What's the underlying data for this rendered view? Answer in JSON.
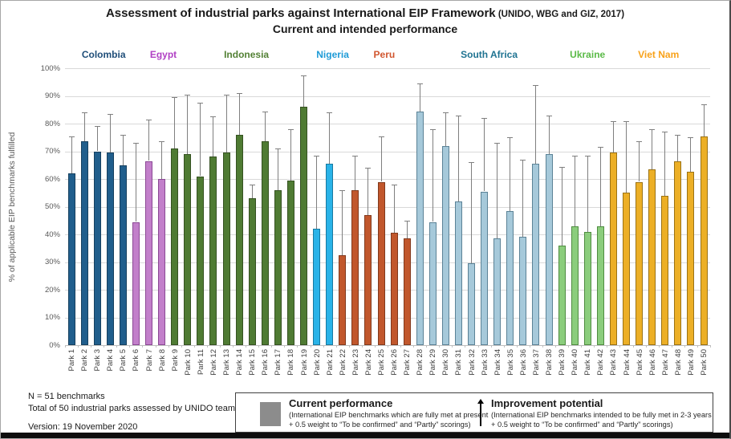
{
  "header": {
    "title_main": "Assessment of industrial parks against International EIP Framework",
    "title_source": " (UNIDO, WBG and GIZ, 2017)",
    "subtitle": "Current and intended performance"
  },
  "chart_data": {
    "type": "bar",
    "title": "Assessment of industrial parks against International EIP Framework (UNIDO, WBG and GIZ, 2017) — Current and intended performance",
    "ylabel": "% of applicable EIP benchmarks fulfilled",
    "xlabel": "",
    "ylim": [
      0,
      100
    ],
    "ytick_step": 10,
    "ytick_format": "percent",
    "grid": true,
    "legend_position": "bottom",
    "error_bar_color": "#7f7f7f",
    "categories": [
      "Park 1",
      "Park 2",
      "Park 3",
      "Park 4",
      "Park 5",
      "Park 6",
      "Park 7",
      "Park 8",
      "Park 9",
      "Park 10",
      "Park 11",
      "Park 12",
      "Park 13",
      "Park 14",
      "Park 15",
      "Park 16",
      "Park 17",
      "Park 18",
      "Park 19",
      "Park 20",
      "Park 21",
      "Park 22",
      "Park 23",
      "Park 24",
      "Park 25",
      "Park 26",
      "Park 27",
      "Park 28",
      "Park 29",
      "Park 30",
      "Park 31",
      "Park 32",
      "Park 33",
      "Park 34",
      "Park 35",
      "Park 36",
      "Park 37",
      "Park 38",
      "Park 39",
      "Park 40",
      "Park 41",
      "Park 42",
      "Park 43",
      "Park 44",
      "Park 45",
      "Park 46",
      "Park 47",
      "Park 48",
      "Park 49",
      "Park 50"
    ],
    "groups": [
      {
        "name": "Colombia",
        "start": 1,
        "end": 5,
        "fill": "#205e8c",
        "border": "#16405f",
        "label_color": "#1f4e79"
      },
      {
        "name": "Egypt",
        "start": 6,
        "end": 8,
        "fill": "#c27fca",
        "border": "#8b4894",
        "label_color": "#b03fc4"
      },
      {
        "name": "Indonesia",
        "start": 9,
        "end": 19,
        "fill": "#4f7b33",
        "border": "#355221",
        "label_color": "#538135"
      },
      {
        "name": "Nigeria",
        "start": 20,
        "end": 21,
        "fill": "#29b3e8",
        "border": "#1879a0",
        "label_color": "#1e9bd7"
      },
      {
        "name": "Peru",
        "start": 22,
        "end": 27,
        "fill": "#c1572c",
        "border": "#81391c",
        "label_color": "#d1562f"
      },
      {
        "name": "South Africa",
        "start": 28,
        "end": 38,
        "fill": "#a6c9da",
        "border": "#5b8296",
        "label_color": "#1f7391"
      },
      {
        "name": "Ukraine",
        "start": 39,
        "end": 42,
        "fill": "#8bcd7c",
        "border": "#4f8c40",
        "label_color": "#5aba47"
      },
      {
        "name": "Viet Nam",
        "start": 43,
        "end": 50,
        "fill": "#ecaf26",
        "border": "#9b7214",
        "label_color": "#f8a21a"
      }
    ],
    "series": [
      {
        "name": "Current performance",
        "values": [
          62,
          73.5,
          70,
          69.5,
          65,
          44.5,
          66.5,
          60,
          71,
          69,
          61,
          68,
          69.5,
          76,
          53,
          73.5,
          56,
          59.5,
          86,
          42,
          65.5,
          32.5,
          56,
          47,
          59,
          40.5,
          38.5,
          84.5,
          44.5,
          72,
          52,
          29.5,
          55.5,
          38.5,
          48.5,
          39,
          65.5,
          69,
          36,
          43,
          41,
          43,
          69.5,
          55,
          59,
          63.5,
          54,
          66.5,
          62.5,
          75.5
        ]
      },
      {
        "name": "Improvement potential (top of whisker)",
        "values": [
          75.5,
          84,
          79,
          83.5,
          76,
          73,
          81.5,
          73.5,
          89.5,
          90.5,
          87.5,
          82.5,
          90.5,
          91,
          58,
          84.5,
          71,
          78,
          97.5,
          68.5,
          84,
          56,
          68.5,
          64,
          75.5,
          58,
          45,
          94.5,
          78,
          84,
          83,
          66,
          82,
          73,
          75,
          67,
          94,
          83,
          64.5,
          68.5,
          68.5,
          71.5,
          81,
          81,
          73.5,
          78,
          77,
          76,
          75,
          87
        ]
      }
    ]
  },
  "footnotes": {
    "line1": "N = 51 benchmarks",
    "line2": "Total of 50 industrial parks assessed by UNIDO team",
    "version": "Version: 19 November 2020"
  },
  "legend": {
    "current": {
      "title": "Current performance",
      "desc1": "(International EIP benchmarks which are fully met at present",
      "desc2": "+ 0.5 weight to “To be confirmed” and “Partly” scorings)",
      "swatch_color": "#8c8c8c"
    },
    "improvement": {
      "title": "Improvement potential",
      "desc1": "(International EIP benchmarks intended to be fully met in 2-3 years",
      "desc2": "+ 0.5 weight to “To be confirmed” and “Partly” scorings)"
    }
  }
}
